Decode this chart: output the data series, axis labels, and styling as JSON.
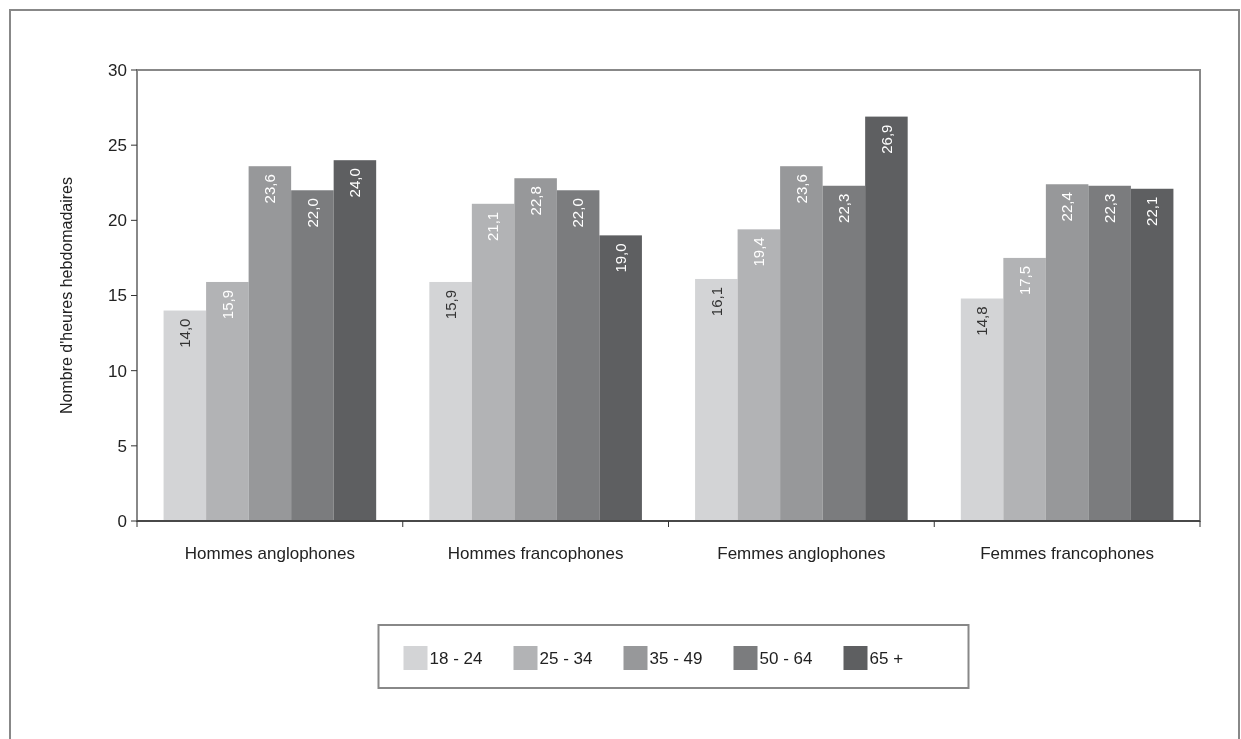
{
  "chart_data": {
    "type": "bar",
    "ylabel": "Nombre d'heures hebdomadaires",
    "categories": [
      "Hommes anglophones",
      "Hommes francophones",
      "Femmes anglophones",
      "Femmes francophones"
    ],
    "series": [
      {
        "name": "18 - 24",
        "color": "#d3d4d6",
        "values": [
          14.0,
          15.9,
          16.1,
          14.8
        ],
        "value_labels": [
          "14,0",
          "15,9",
          "16,1",
          "14,8"
        ]
      },
      {
        "name": "25 - 34",
        "color": "#b2b3b5",
        "values": [
          15.9,
          21.1,
          19.4,
          17.5
        ],
        "value_labels": [
          "15,9",
          "21,1",
          "19,4",
          "17,5"
        ]
      },
      {
        "name": "35 - 49",
        "color": "#97989a",
        "values": [
          23.6,
          22.8,
          23.6,
          22.4
        ],
        "value_labels": [
          "23,6",
          "22,8",
          "23,6",
          "22,4"
        ]
      },
      {
        "name": "50 - 64",
        "color": "#7b7c7e",
        "values": [
          22.0,
          22.0,
          22.3,
          22.3
        ],
        "value_labels": [
          "22,0",
          "22,0",
          "22,3",
          "22,3"
        ]
      },
      {
        "name": "65 +",
        "color": "#5e5f61",
        "values": [
          24.0,
          19.0,
          26.9,
          22.1
        ],
        "value_labels": [
          "24,0",
          "19,0",
          "26,9",
          "22,1"
        ]
      }
    ],
    "ylim": [
      0,
      30
    ],
    "yticks": [
      0,
      5,
      10,
      15,
      20,
      25,
      30
    ],
    "grid": false,
    "legend": "bottom"
  }
}
